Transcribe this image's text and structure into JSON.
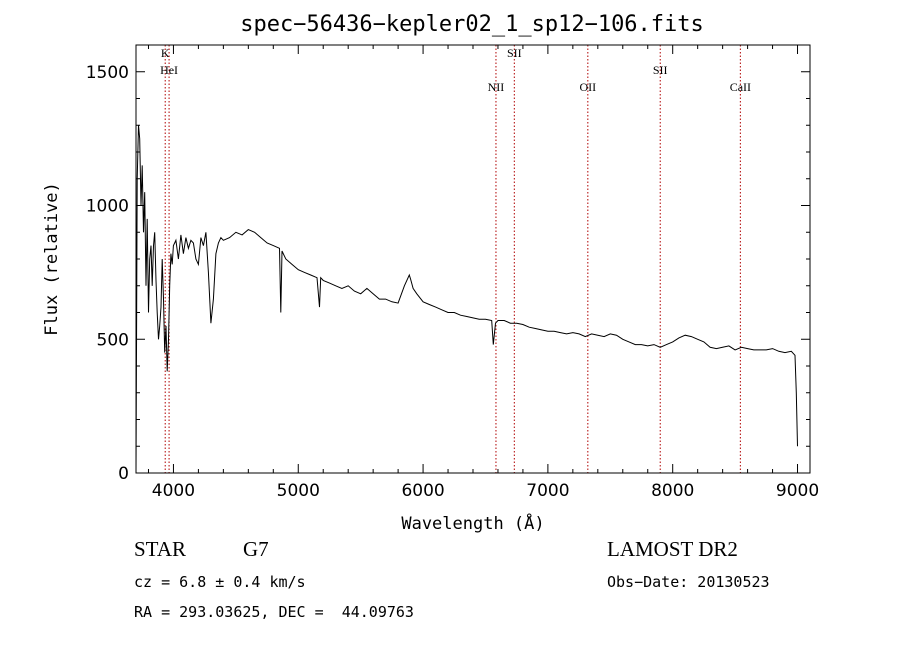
{
  "chart_data": {
    "type": "line",
    "title": "spec−56436−kepler02_1_sp12−106.fits",
    "xlabel": "Wavelength (Å)",
    "ylabel": "Flux (relative)",
    "xlim": [
      3700,
      9100
    ],
    "ylim": [
      0,
      1600
    ],
    "x_ticks": [
      4000,
      5000,
      6000,
      7000,
      8000,
      9000
    ],
    "y_ticks": [
      0,
      500,
      1000,
      1500
    ],
    "grid": false,
    "series": [
      {
        "x": [
          3700,
          3710,
          3720,
          3730,
          3740,
          3750,
          3760,
          3770,
          3780,
          3790,
          3800,
          3810,
          3820,
          3830,
          3840,
          3850,
          3860,
          3870,
          3880,
          3890,
          3900,
          3910,
          3920,
          3930,
          3940,
          3950,
          3960,
          3970,
          3980,
          3990,
          4000,
          4020,
          4040,
          4060,
          4080,
          4100,
          4120,
          4140,
          4160,
          4180,
          4200,
          4220,
          4240,
          4260,
          4280,
          4300,
          4320,
          4340,
          4360,
          4380,
          4400,
          4450,
          4500,
          4550,
          4600,
          4650,
          4700,
          4750,
          4800,
          4850,
          4860,
          4870,
          4900,
          4950,
          5000,
          5050,
          5100,
          5150,
          5170,
          5180,
          5200,
          5250,
          5300,
          5350,
          5400,
          5450,
          5500,
          5550,
          5600,
          5650,
          5700,
          5750,
          5800,
          5850,
          5890,
          5900,
          5920,
          5950,
          6000,
          6050,
          6100,
          6150,
          6200,
          6250,
          6300,
          6350,
          6400,
          6450,
          6500,
          6550,
          6563,
          6580,
          6600,
          6650,
          6700,
          6750,
          6800,
          6850,
          6900,
          6950,
          7000,
          7050,
          7100,
          7150,
          7200,
          7250,
          7300,
          7350,
          7400,
          7450,
          7500,
          7550,
          7600,
          7650,
          7700,
          7750,
          7800,
          7850,
          7900,
          7950,
          8000,
          8050,
          8100,
          8150,
          8200,
          8250,
          8300,
          8350,
          8400,
          8450,
          8500,
          8550,
          8600,
          8650,
          8700,
          8750,
          8800,
          8850,
          8900,
          8950,
          8980,
          8990,
          9000
        ],
        "y": [
          0,
          1100,
          1300,
          1250,
          1000,
          1150,
          900,
          1050,
          700,
          950,
          600,
          800,
          850,
          700,
          850,
          900,
          720,
          600,
          500,
          550,
          620,
          800,
          650,
          450,
          550,
          380,
          500,
          700,
          820,
          780,
          850,
          870,
          800,
          890,
          820,
          880,
          840,
          870,
          860,
          800,
          780,
          880,
          850,
          900,
          750,
          560,
          650,
          820,
          860,
          880,
          870,
          880,
          900,
          890,
          910,
          900,
          880,
          860,
          850,
          840,
          600,
          830,
          800,
          780,
          760,
          750,
          740,
          730,
          620,
          730,
          720,
          710,
          700,
          690,
          700,
          680,
          670,
          690,
          670,
          650,
          650,
          640,
          635,
          700,
          740,
          725,
          690,
          670,
          640,
          630,
          620,
          610,
          600,
          600,
          590,
          585,
          580,
          575,
          575,
          570,
          480,
          560,
          570,
          570,
          560,
          560,
          555,
          545,
          540,
          535,
          530,
          530,
          525,
          520,
          525,
          520,
          510,
          520,
          515,
          510,
          520,
          515,
          500,
          490,
          480,
          480,
          475,
          480,
          470,
          480,
          490,
          505,
          515,
          510,
          500,
          490,
          470,
          465,
          470,
          475,
          460,
          470,
          465,
          460,
          460,
          460,
          465,
          455,
          450,
          455,
          440,
          300,
          100
        ]
      }
    ],
    "line_markers": [
      {
        "label": "K",
        "x": 3934
      },
      {
        "label": "HeI",
        "x": 3965
      },
      {
        "label": "NII",
        "x": 6584
      },
      {
        "label": "SII",
        "x": 6731
      },
      {
        "label": "OII",
        "x": 7320
      },
      {
        "label": "SII",
        "x": 7900
      },
      {
        "label": "CaII",
        "x": 8542
      }
    ]
  },
  "info": {
    "object_type": "STAR",
    "spectral_class": "G7",
    "survey": "LAMOST DR2",
    "redshift": "cz = 6.8 ± 0.4 km/s",
    "obs_date": "Obs−Date: 20130523",
    "coordinates": "RA = 293.03625, DEC =  44.09763"
  },
  "colors": {
    "spectrum": "#000000",
    "marker_line": "#b00000",
    "axis": "#000000"
  }
}
